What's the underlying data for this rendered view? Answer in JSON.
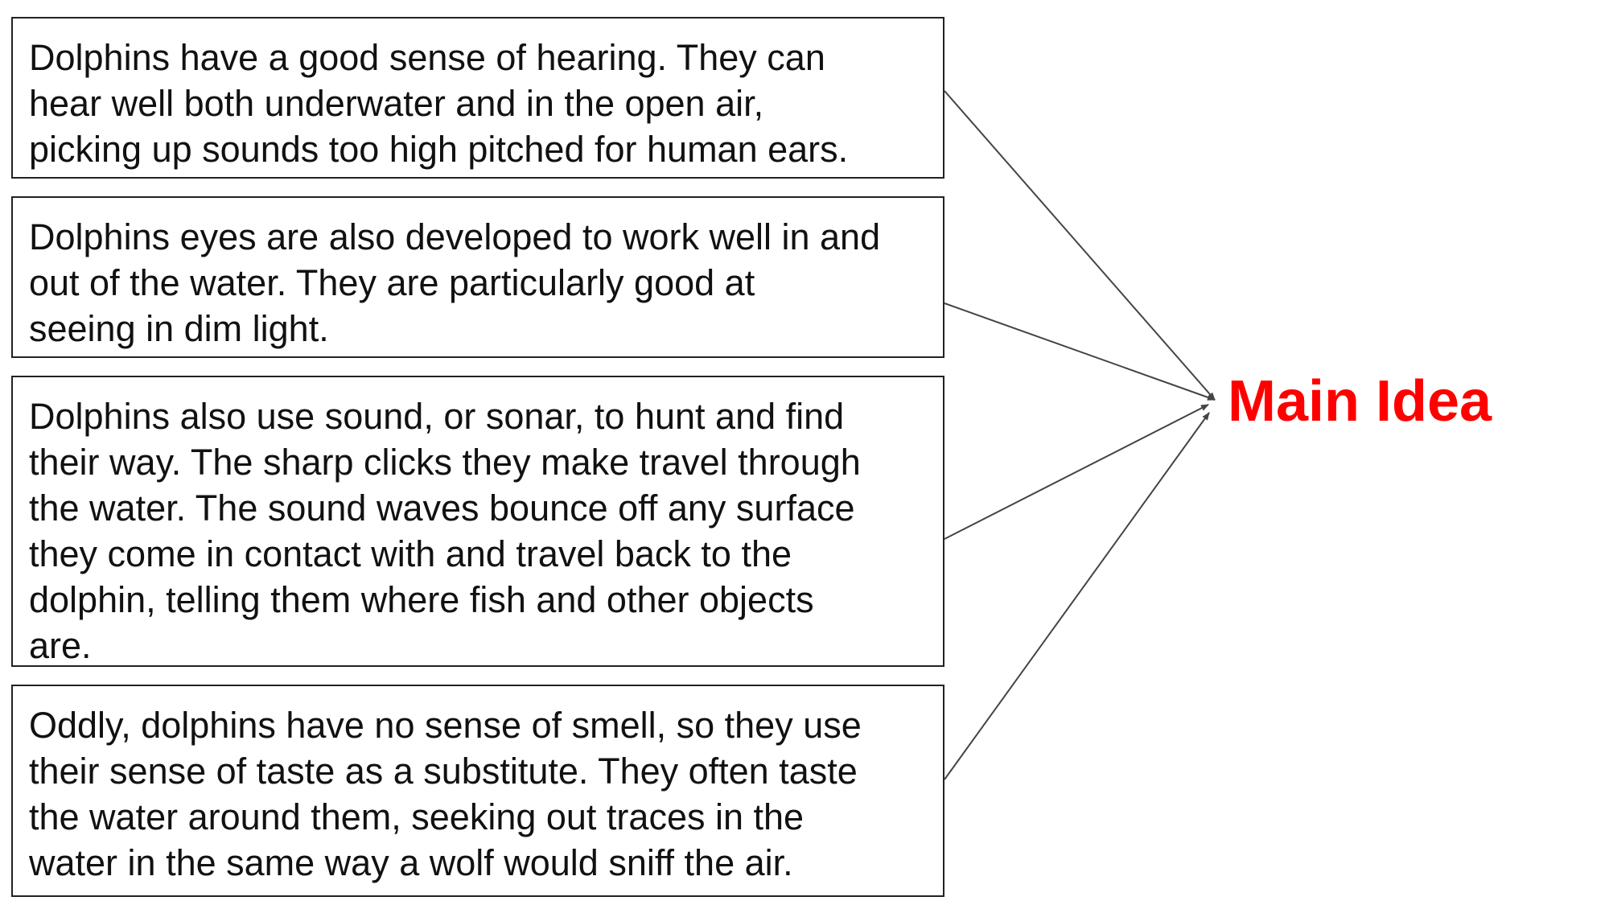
{
  "details": [
    {
      "text": "Dolphins have a good sense of hearing.  They can\nhear well both underwater and in the open air,\npicking up sounds too high pitched for human ears."
    },
    {
      "text": "Dolphins eyes are also developed to work well in and\nout of the water.  They are particularly good at\nseeing in dim light."
    },
    {
      "text": "Dolphins also use sound, or sonar, to hunt and find\ntheir way.  The sharp clicks they make travel through\nthe water.  The sound waves bounce off any surface\nthey come in contact with and travel back to the\ndolphin, telling them where fish and other objects\nare."
    },
    {
      "text": "Oddly, dolphins have no sense of smell, so they use\ntheir sense of taste as a substitute.  They often taste\nthe water around them, seeking out traces in the\nwater in the same way a wolf would sniff the air."
    }
  ],
  "main_idea": {
    "label": "Main Idea",
    "color": "#ff0000"
  },
  "arrow_color": "#444444"
}
